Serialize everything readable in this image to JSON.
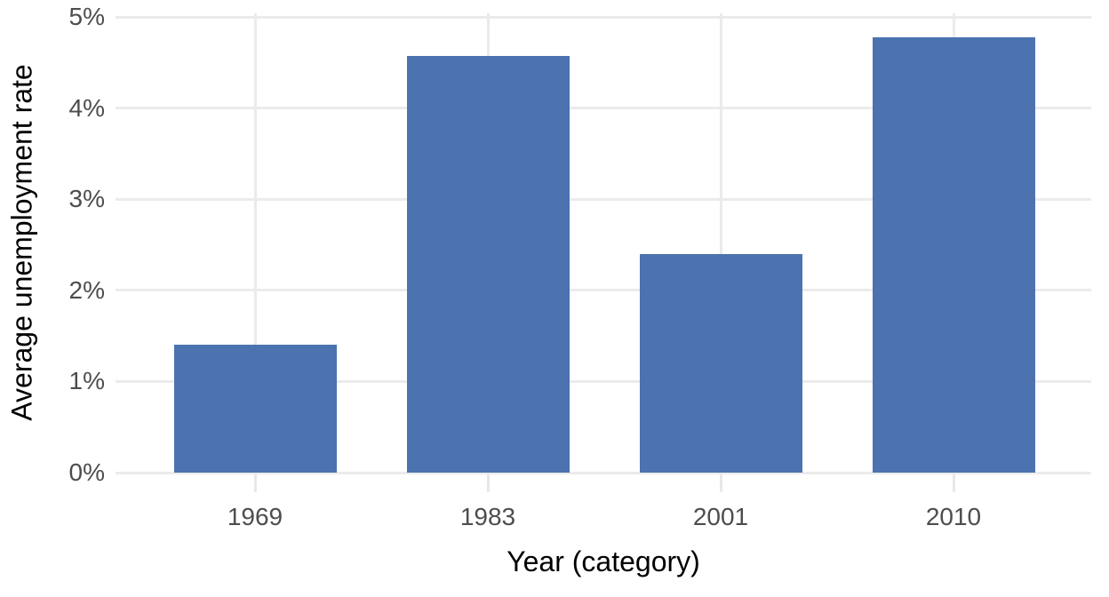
{
  "chart_data": {
    "type": "bar",
    "title": "",
    "categories": [
      "1969",
      "1983",
      "2001",
      "2010"
    ],
    "values": [
      1.4,
      4.57,
      2.4,
      4.78
    ],
    "value_unit": "percent",
    "xlabel": "Year (category)",
    "ylabel": "Average unemployment rate",
    "ylim": [
      0,
      5.05
    ],
    "yticks": [
      0,
      1,
      2,
      3,
      4,
      5
    ],
    "ytick_labels": [
      "0%",
      "1%",
      "2%",
      "3%",
      "4%",
      "5%"
    ],
    "grid": {
      "horizontal_major": true,
      "vertical_at_categories": true,
      "minor": false
    },
    "legend": null,
    "colors": {
      "bar": "#4C72B0",
      "gridline": "#EBEBEB",
      "tick_mark": "#E8E8E8",
      "tick_label": "#4D4D4D",
      "axis_title": "#000000",
      "background": "#FFFFFF"
    }
  }
}
